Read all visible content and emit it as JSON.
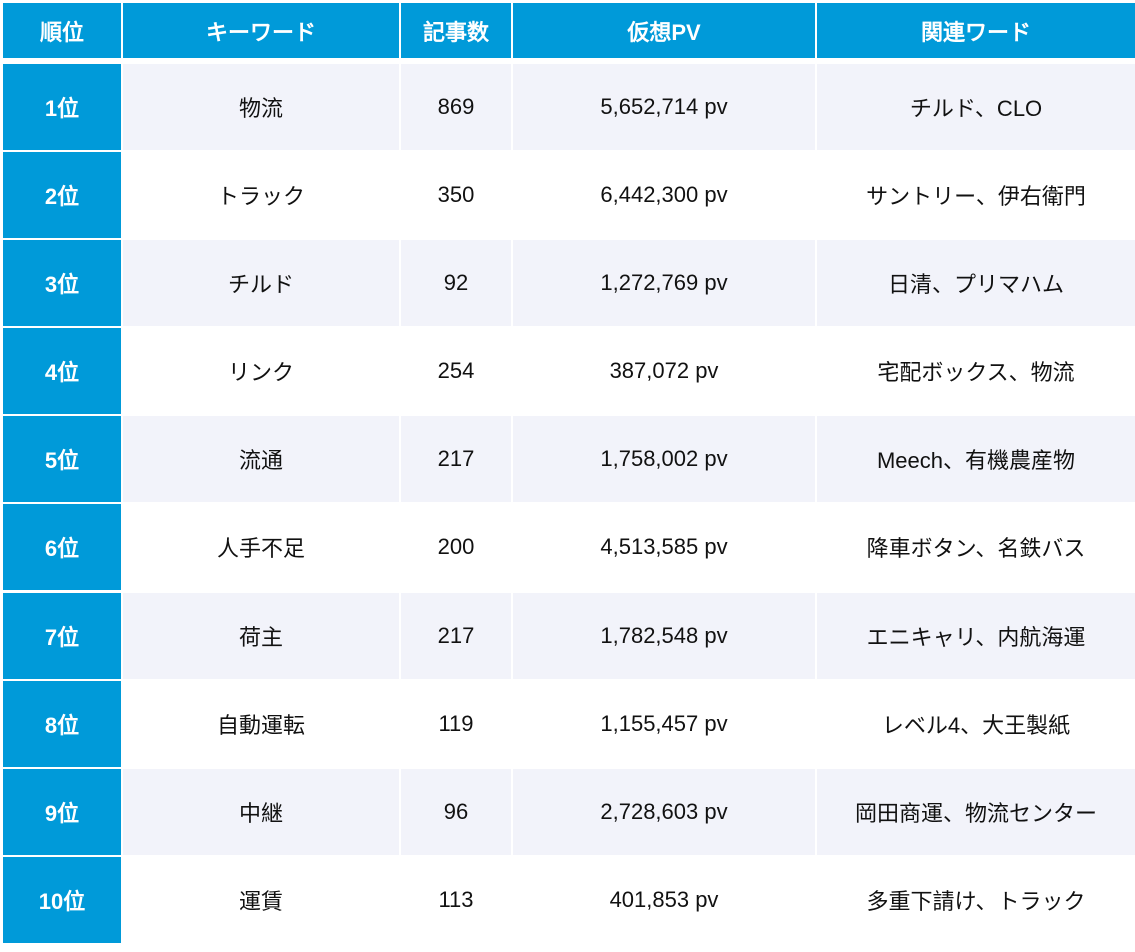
{
  "headers": [
    "順位",
    "キーワード",
    "記事数",
    "仮想PV",
    "関連ワード"
  ],
  "rows": [
    {
      "rank": "1位",
      "keyword": "物流",
      "articles": "869",
      "pv": "5,652,714 pv",
      "related": "チルド、CLO"
    },
    {
      "rank": "2位",
      "keyword": "トラック",
      "articles": "350",
      "pv": "6,442,300 pv",
      "related": "サントリー、伊右衛門"
    },
    {
      "rank": "3位",
      "keyword": "チルド",
      "articles": "92",
      "pv": "1,272,769 pv",
      "related": "日清、プリマハム"
    },
    {
      "rank": "4位",
      "keyword": "リンク",
      "articles": "254",
      "pv": "387,072 pv",
      "related": "宅配ボックス、物流"
    },
    {
      "rank": "5位",
      "keyword": "流通",
      "articles": "217",
      "pv": "1,758,002 pv",
      "related": "Meech、有機農産物"
    },
    {
      "rank": "6位",
      "keyword": "人手不足",
      "articles": "200",
      "pv": "4,513,585 pv",
      "related": "降車ボタン、名鉄バス"
    },
    {
      "rank": "7位",
      "keyword": "荷主",
      "articles": "217",
      "pv": "1,782,548 pv",
      "related": "エニキャリ、内航海運"
    },
    {
      "rank": "8位",
      "keyword": "自動運転",
      "articles": "119",
      "pv": "1,155,457 pv",
      "related": "レベル4、大王製紙"
    },
    {
      "rank": "9位",
      "keyword": "中継",
      "articles": "96",
      "pv": "2,728,603 pv",
      "related": "岡田商運、物流センター"
    },
    {
      "rank": "10位",
      "keyword": "運賃",
      "articles": "113",
      "pv": "401,853 pv",
      "related": "多重下請け、トラック"
    }
  ],
  "colors": {
    "header": "#009ad9",
    "row_alt": "#f2f3fa"
  }
}
